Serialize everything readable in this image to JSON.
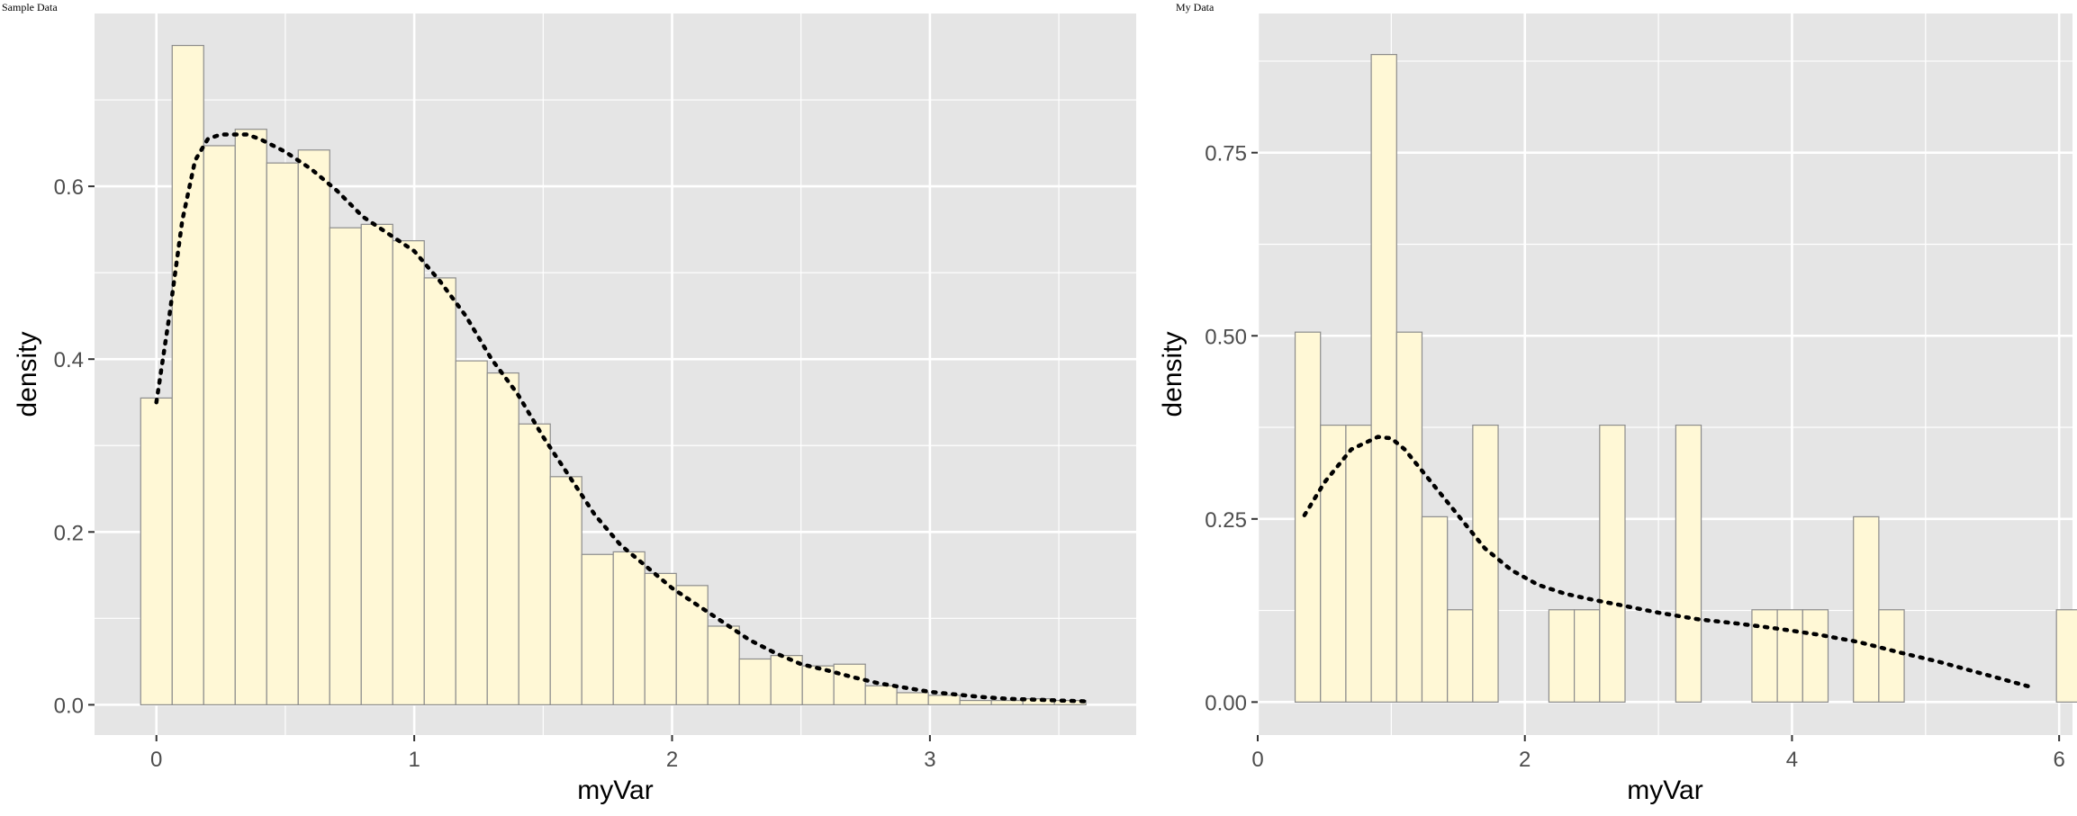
{
  "colors": {
    "panel_bg": "#E5E5E5",
    "grid_major": "#FFFFFF",
    "bar_fill": "#FFF8D6",
    "bar_stroke": "#8C8C8C",
    "density_line": "#000000",
    "axis_text": "#4D4D4D",
    "axis_title": "#000000"
  },
  "chart_data": [
    {
      "type": "bar",
      "subtype": "histogram-with-density",
      "title": "Sample Data",
      "xlabel": "myVar",
      "ylabel": "density",
      "xlim": [
        -0.24,
        3.8
      ],
      "ylim": [
        -0.035,
        0.8
      ],
      "grid": true,
      "legend": "none",
      "x_ticks": [
        0,
        1,
        2,
        3
      ],
      "x_tick_labels": [
        "0",
        "1",
        "2",
        "3"
      ],
      "y_ticks": [
        0.0,
        0.2,
        0.4,
        0.6
      ],
      "y_tick_labels": [
        "0.0",
        "0.2",
        "0.4",
        "0.6"
      ],
      "bin_width": 0.1222,
      "bin_start": -0.061,
      "bars": [
        0.355,
        0.763,
        0.647,
        0.666,
        0.627,
        0.642,
        0.552,
        0.556,
        0.537,
        0.494,
        0.398,
        0.384,
        0.325,
        0.264,
        0.174,
        0.177,
        0.152,
        0.138,
        0.091,
        0.053,
        0.057,
        0.045,
        0.047,
        0.022,
        0.014,
        0.011,
        0.005,
        0.005,
        0.007,
        0.005
      ],
      "density": {
        "x": [
          0.0,
          0.05,
          0.1,
          0.15,
          0.2,
          0.25,
          0.3,
          0.35,
          0.4,
          0.5,
          0.6,
          0.7,
          0.8,
          0.9,
          1.0,
          1.1,
          1.2,
          1.3,
          1.4,
          1.5,
          1.6,
          1.7,
          1.8,
          1.9,
          2.0,
          2.1,
          2.2,
          2.3,
          2.4,
          2.5,
          2.6,
          2.7,
          2.8,
          2.9,
          3.0,
          3.1,
          3.2,
          3.3,
          3.4,
          3.5,
          3.6
        ],
        "y": [
          0.35,
          0.45,
          0.56,
          0.63,
          0.655,
          0.66,
          0.66,
          0.66,
          0.655,
          0.64,
          0.62,
          0.595,
          0.565,
          0.545,
          0.525,
          0.49,
          0.45,
          0.4,
          0.36,
          0.31,
          0.265,
          0.22,
          0.185,
          0.16,
          0.135,
          0.115,
          0.095,
          0.075,
          0.06,
          0.047,
          0.04,
          0.032,
          0.025,
          0.02,
          0.015,
          0.012,
          0.009,
          0.007,
          0.006,
          0.005,
          0.004
        ]
      }
    },
    {
      "type": "bar",
      "subtype": "histogram-with-density",
      "title": "My Data",
      "xlabel": "myVar",
      "ylabel": "density",
      "xlim": [
        0,
        6.1
      ],
      "ylim": [
        -0.045,
        0.94
      ],
      "grid": true,
      "legend": "none",
      "x_ticks": [
        0,
        2,
        4,
        6
      ],
      "x_tick_labels": [
        "0",
        "2",
        "4",
        "6"
      ],
      "y_ticks": [
        0.0,
        0.25,
        0.5,
        0.75
      ],
      "y_tick_labels": [
        "0.00",
        "0.25",
        "0.50",
        "0.75"
      ],
      "bin_width": 0.19,
      "bin_start": 0.28,
      "bars": [
        0.505,
        0.378,
        0.378,
        0.884,
        0.505,
        0.253,
        0.126,
        0.378,
        0,
        0,
        0.126,
        0.126,
        0.378,
        0,
        0,
        0.378,
        0,
        0,
        0.126,
        0.126,
        0.126,
        0,
        0.253,
        0.126,
        0,
        0,
        0,
        0,
        0,
        0,
        0.126
      ],
      "density": {
        "x": [
          0.35,
          0.5,
          0.7,
          0.9,
          1.0,
          1.1,
          1.3,
          1.5,
          1.7,
          1.9,
          2.1,
          2.3,
          2.5,
          2.7,
          3.0,
          3.3,
          3.6,
          3.9,
          4.2,
          4.5,
          4.8,
          5.1,
          5.4,
          5.8
        ],
        "y": [
          0.255,
          0.3,
          0.345,
          0.362,
          0.36,
          0.345,
          0.3,
          0.255,
          0.21,
          0.18,
          0.16,
          0.148,
          0.14,
          0.133,
          0.122,
          0.113,
          0.107,
          0.1,
          0.092,
          0.082,
          0.068,
          0.055,
          0.04,
          0.02
        ]
      }
    }
  ]
}
